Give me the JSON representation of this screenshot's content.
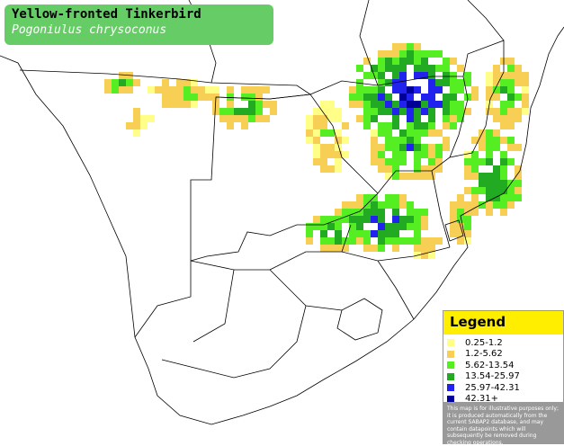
{
  "header": {
    "title": "Yellow-fronted Tinkerbird",
    "subtitle": "Pogoniulus chrysoconus"
  },
  "legend": {
    "title": "Legend",
    "items": [
      {
        "label": "0.25-1.2",
        "color": "#ffff88"
      },
      {
        "label": "1.2-5.62",
        "color": "#f7cf55"
      },
      {
        "label": "5.62-13.54",
        "color": "#55ee22"
      },
      {
        "label": "13.54-25.97",
        "color": "#22aa22"
      },
      {
        "label": "25.97-42.31",
        "color": "#2222ee"
      },
      {
        "label": "42.31+",
        "color": "#000099"
      }
    ],
    "disclaimer": "This map is for illustrative purposes only; it is produced automatically from the current SABAP2 database, and may contain datapoints which will subsequently be removed during checking operations."
  }
}
